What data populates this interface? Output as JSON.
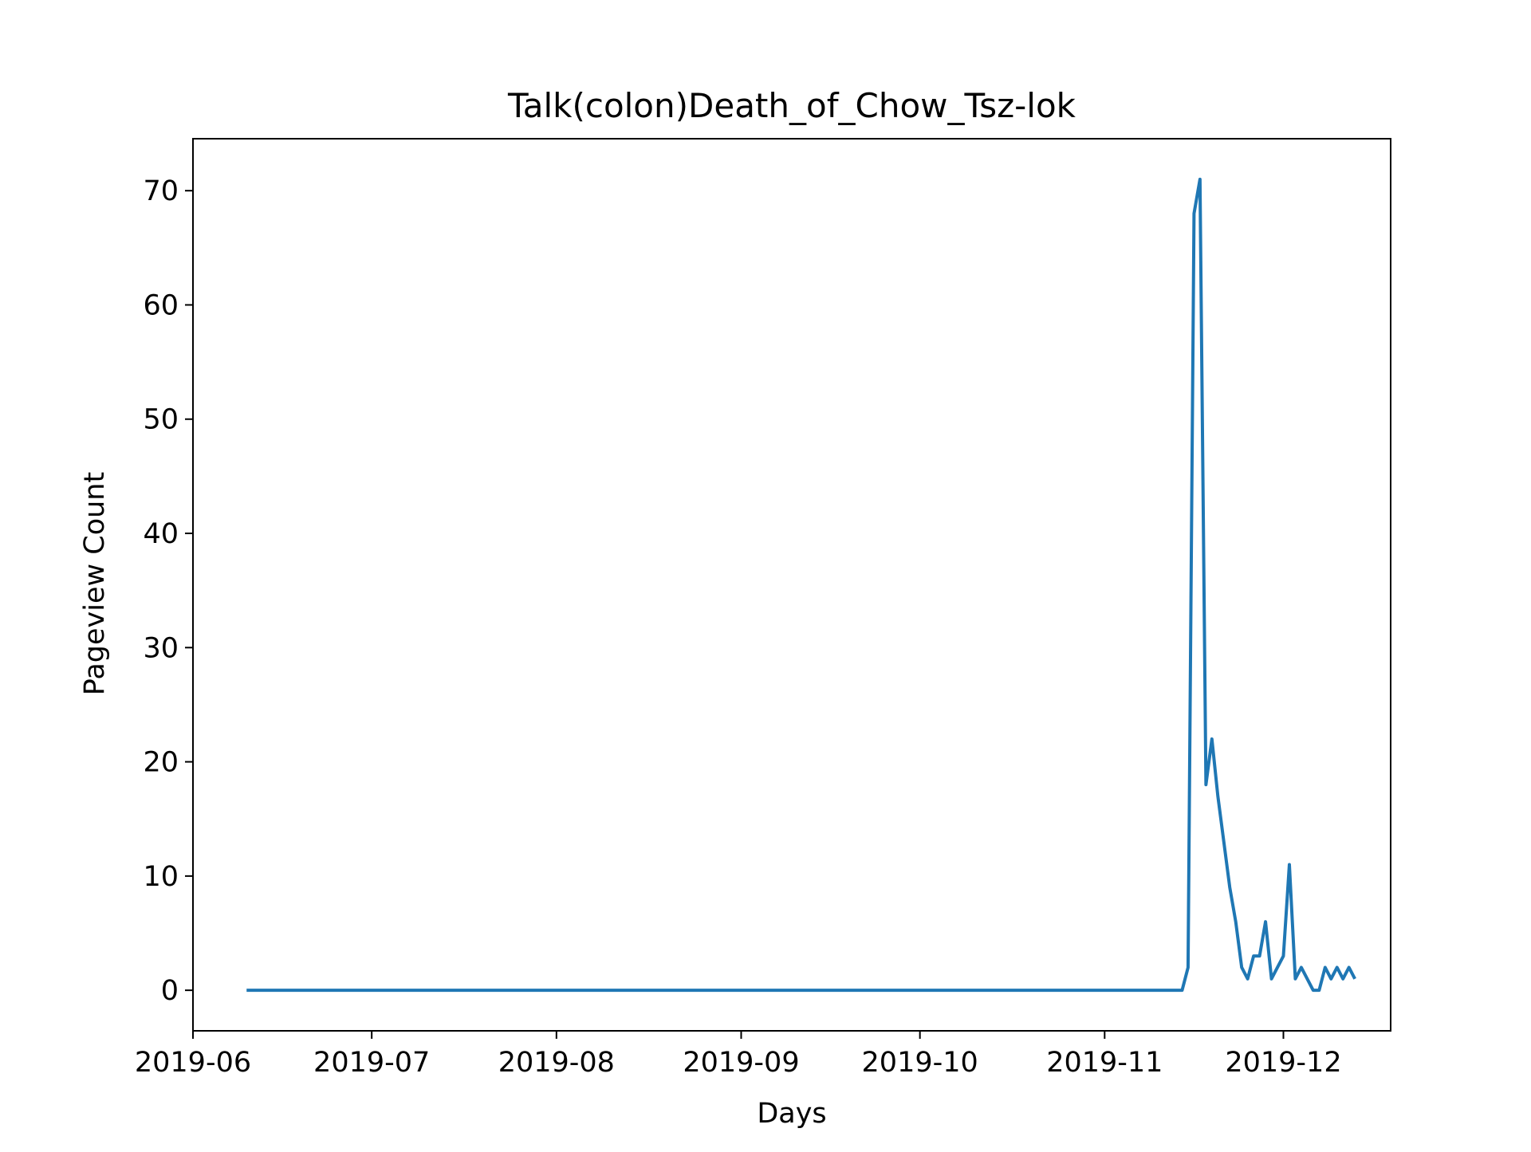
{
  "chart_data": {
    "type": "line",
    "title": "Talk(colon)Death_of_Chow_Tsz-lok",
    "xlabel": "Days",
    "ylabel": "Pageview Count",
    "xlim": [
      "2019-06-01",
      "2019-12-19"
    ],
    "ylim": [
      -3.55,
      74.55
    ],
    "grid": false,
    "line_color": "#1f77b4",
    "x_ticks": [
      {
        "value": "2019-06-01",
        "label": "2019-06"
      },
      {
        "value": "2019-07-01",
        "label": "2019-07"
      },
      {
        "value": "2019-08-01",
        "label": "2019-08"
      },
      {
        "value": "2019-09-01",
        "label": "2019-09"
      },
      {
        "value": "2019-10-01",
        "label": "2019-10"
      },
      {
        "value": "2019-11-01",
        "label": "2019-11"
      },
      {
        "value": "2019-12-01",
        "label": "2019-12"
      }
    ],
    "y_ticks": [
      {
        "value": 0,
        "label": "0"
      },
      {
        "value": 10,
        "label": "10"
      },
      {
        "value": 20,
        "label": "20"
      },
      {
        "value": 30,
        "label": "30"
      },
      {
        "value": 40,
        "label": "40"
      },
      {
        "value": 50,
        "label": "50"
      },
      {
        "value": 60,
        "label": "60"
      },
      {
        "value": 70,
        "label": "70"
      }
    ],
    "series": [
      {
        "points": [
          {
            "x": "2019-06-10",
            "y": 0
          },
          {
            "x": "2019-11-14",
            "y": 0
          },
          {
            "x": "2019-11-15",
            "y": 2
          },
          {
            "x": "2019-11-16",
            "y": 68
          },
          {
            "x": "2019-11-17",
            "y": 71
          },
          {
            "x": "2019-11-18",
            "y": 18
          },
          {
            "x": "2019-11-19",
            "y": 22
          },
          {
            "x": "2019-11-20",
            "y": 17
          },
          {
            "x": "2019-11-21",
            "y": 13
          },
          {
            "x": "2019-11-22",
            "y": 9
          },
          {
            "x": "2019-11-23",
            "y": 6
          },
          {
            "x": "2019-11-24",
            "y": 2
          },
          {
            "x": "2019-11-25",
            "y": 1
          },
          {
            "x": "2019-11-26",
            "y": 3
          },
          {
            "x": "2019-11-27",
            "y": 3
          },
          {
            "x": "2019-11-28",
            "y": 6
          },
          {
            "x": "2019-11-29",
            "y": 1
          },
          {
            "x": "2019-11-30",
            "y": 2
          },
          {
            "x": "2019-12-01",
            "y": 3
          },
          {
            "x": "2019-12-02",
            "y": 11
          },
          {
            "x": "2019-12-03",
            "y": 1
          },
          {
            "x": "2019-12-04",
            "y": 2
          },
          {
            "x": "2019-12-05",
            "y": 1
          },
          {
            "x": "2019-12-06",
            "y": 0
          },
          {
            "x": "2019-12-07",
            "y": 0
          },
          {
            "x": "2019-12-08",
            "y": 2
          },
          {
            "x": "2019-12-09",
            "y": 1
          },
          {
            "x": "2019-12-10",
            "y": 2
          },
          {
            "x": "2019-12-11",
            "y": 1
          },
          {
            "x": "2019-12-12",
            "y": 2
          },
          {
            "x": "2019-12-13",
            "y": 1
          }
        ]
      }
    ]
  }
}
